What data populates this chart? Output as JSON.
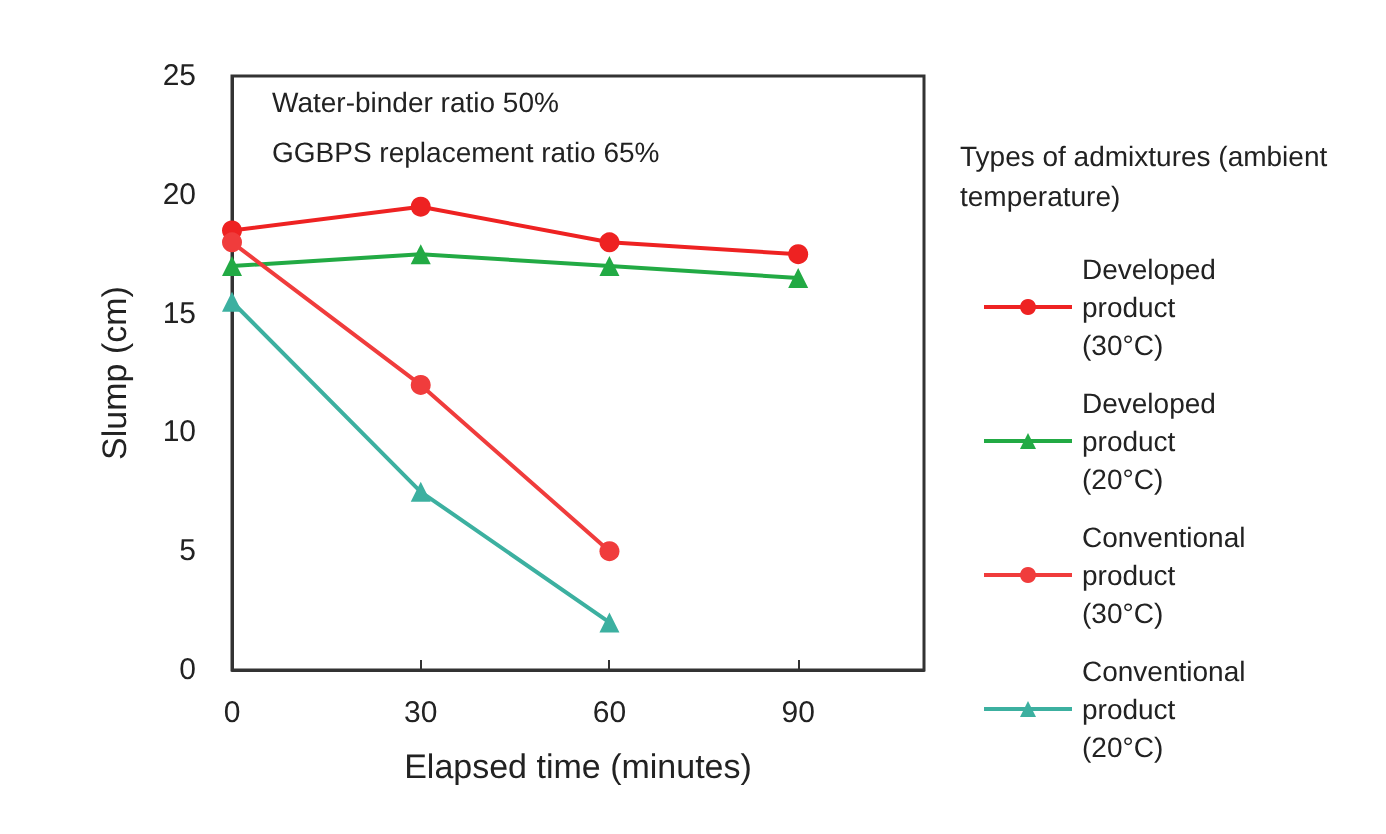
{
  "chart_data": {
    "type": "line",
    "xlabel": "Elapsed time (minutes)",
    "ylabel": "Slump (cm)",
    "legend_title": "Types of admixtures (ambient temperature)",
    "annotations": [
      "Water-binder ratio 50%",
      "GGBPS replacement ratio 65%"
    ],
    "x": [
      0,
      30,
      60,
      90
    ],
    "xlim": [
      0,
      110
    ],
    "xticks": [
      0,
      30,
      60,
      90
    ],
    "ylim": [
      0,
      25
    ],
    "yticks": [
      0,
      5,
      10,
      15,
      20,
      25
    ],
    "grid": false,
    "legend": "right",
    "series": [
      {
        "name": "Developed product (30°C)",
        "color": "#ee2222",
        "marker": "circle",
        "values": [
          18.5,
          19.5,
          18,
          17.5
        ]
      },
      {
        "name": "Developed product (20°C)",
        "color": "#22aa44",
        "marker": "triangle",
        "values": [
          17,
          17.5,
          17,
          16.5
        ]
      },
      {
        "name": "Conventional product (30°C)",
        "color": "#f03c3c",
        "marker": "circle",
        "values": [
          18,
          12,
          5,
          null
        ]
      },
      {
        "name": "Conventional product (20°C)",
        "color": "#3cb0a0",
        "marker": "triangle",
        "values": [
          15.5,
          7.5,
          2,
          null
        ]
      }
    ]
  }
}
